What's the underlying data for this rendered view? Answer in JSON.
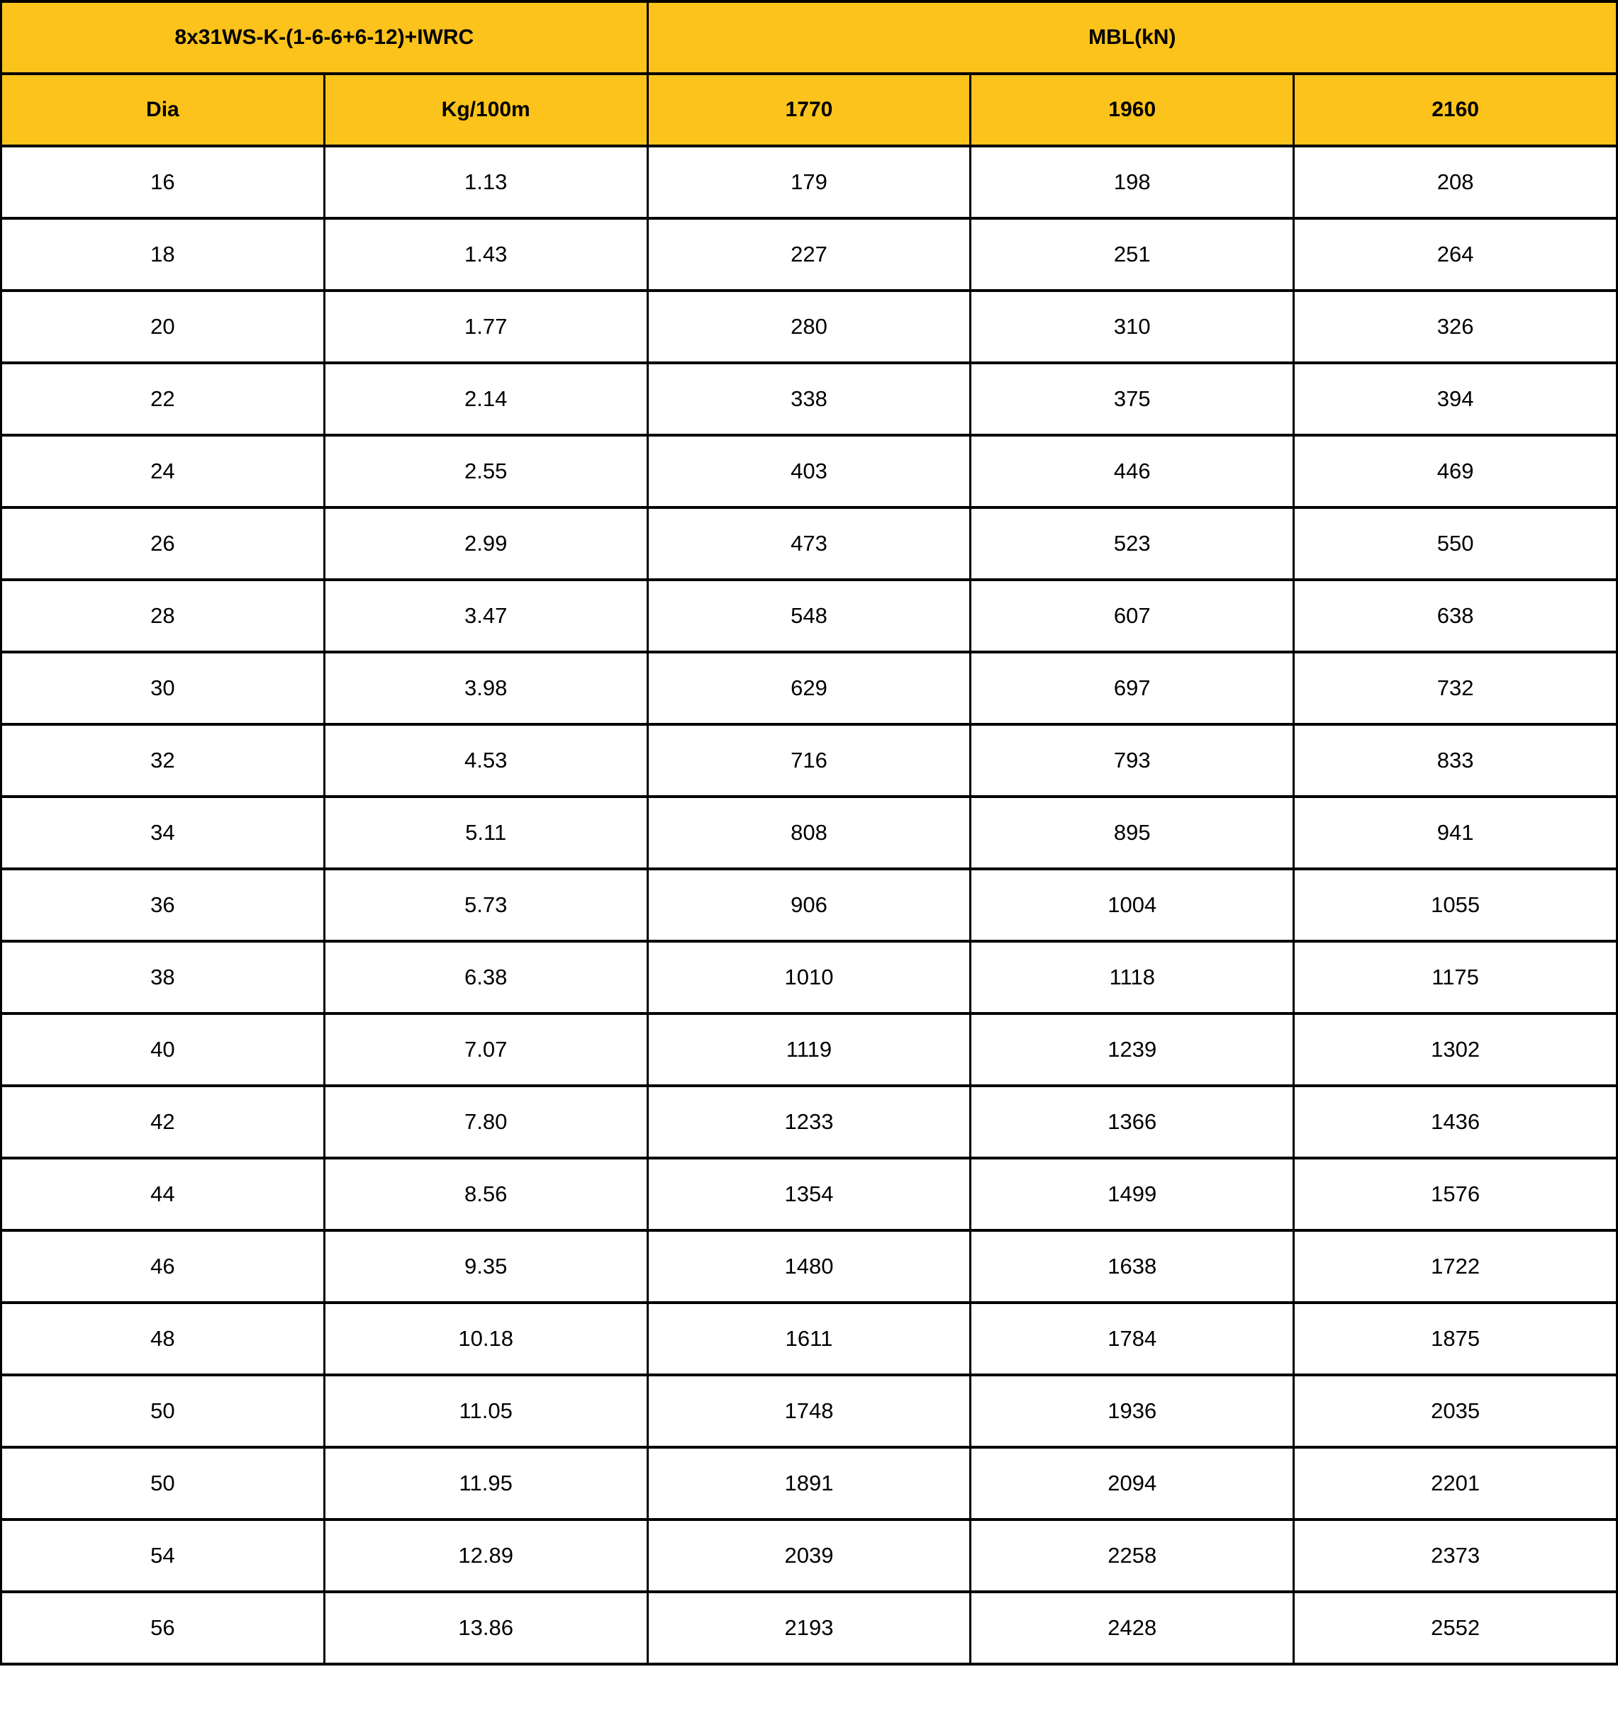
{
  "colors": {
    "header_bg": "#FBC31B",
    "border": "#000000"
  },
  "table": {
    "title": "8x31WS-K-(1-6-6+6-12)+IWRC",
    "group_header": "MBL(kN)",
    "columns": [
      "Dia",
      "Kg/100m",
      "1770",
      "1960",
      "2160"
    ],
    "rows": [
      [
        "16",
        "1.13",
        "179",
        "198",
        "208"
      ],
      [
        "18",
        "1.43",
        "227",
        "251",
        "264"
      ],
      [
        "20",
        "1.77",
        "280",
        "310",
        "326"
      ],
      [
        "22",
        "2.14",
        "338",
        "375",
        "394"
      ],
      [
        "24",
        "2.55",
        "403",
        "446",
        "469"
      ],
      [
        "26",
        "2.99",
        "473",
        "523",
        "550"
      ],
      [
        "28",
        "3.47",
        "548",
        "607",
        "638"
      ],
      [
        "30",
        "3.98",
        "629",
        "697",
        "732"
      ],
      [
        "32",
        "4.53",
        "716",
        "793",
        "833"
      ],
      [
        "34",
        "5.11",
        "808",
        "895",
        "941"
      ],
      [
        "36",
        "5.73",
        "906",
        "1004",
        "1055"
      ],
      [
        "38",
        "6.38",
        "1010",
        "1118",
        "1175"
      ],
      [
        "40",
        "7.07",
        "1119",
        "1239",
        "1302"
      ],
      [
        "42",
        "7.80",
        "1233",
        "1366",
        "1436"
      ],
      [
        "44",
        "8.56",
        "1354",
        "1499",
        "1576"
      ],
      [
        "46",
        "9.35",
        "1480",
        "1638",
        "1722"
      ],
      [
        "48",
        "10.18",
        "1611",
        "1784",
        "1875"
      ],
      [
        "50",
        "11.05",
        "1748",
        "1936",
        "2035"
      ],
      [
        "50",
        "11.95",
        "1891",
        "2094",
        "2201"
      ],
      [
        "54",
        "12.89",
        "2039",
        "2258",
        "2373"
      ],
      [
        "56",
        "13.86",
        "2193",
        "2428",
        "2552"
      ]
    ]
  }
}
